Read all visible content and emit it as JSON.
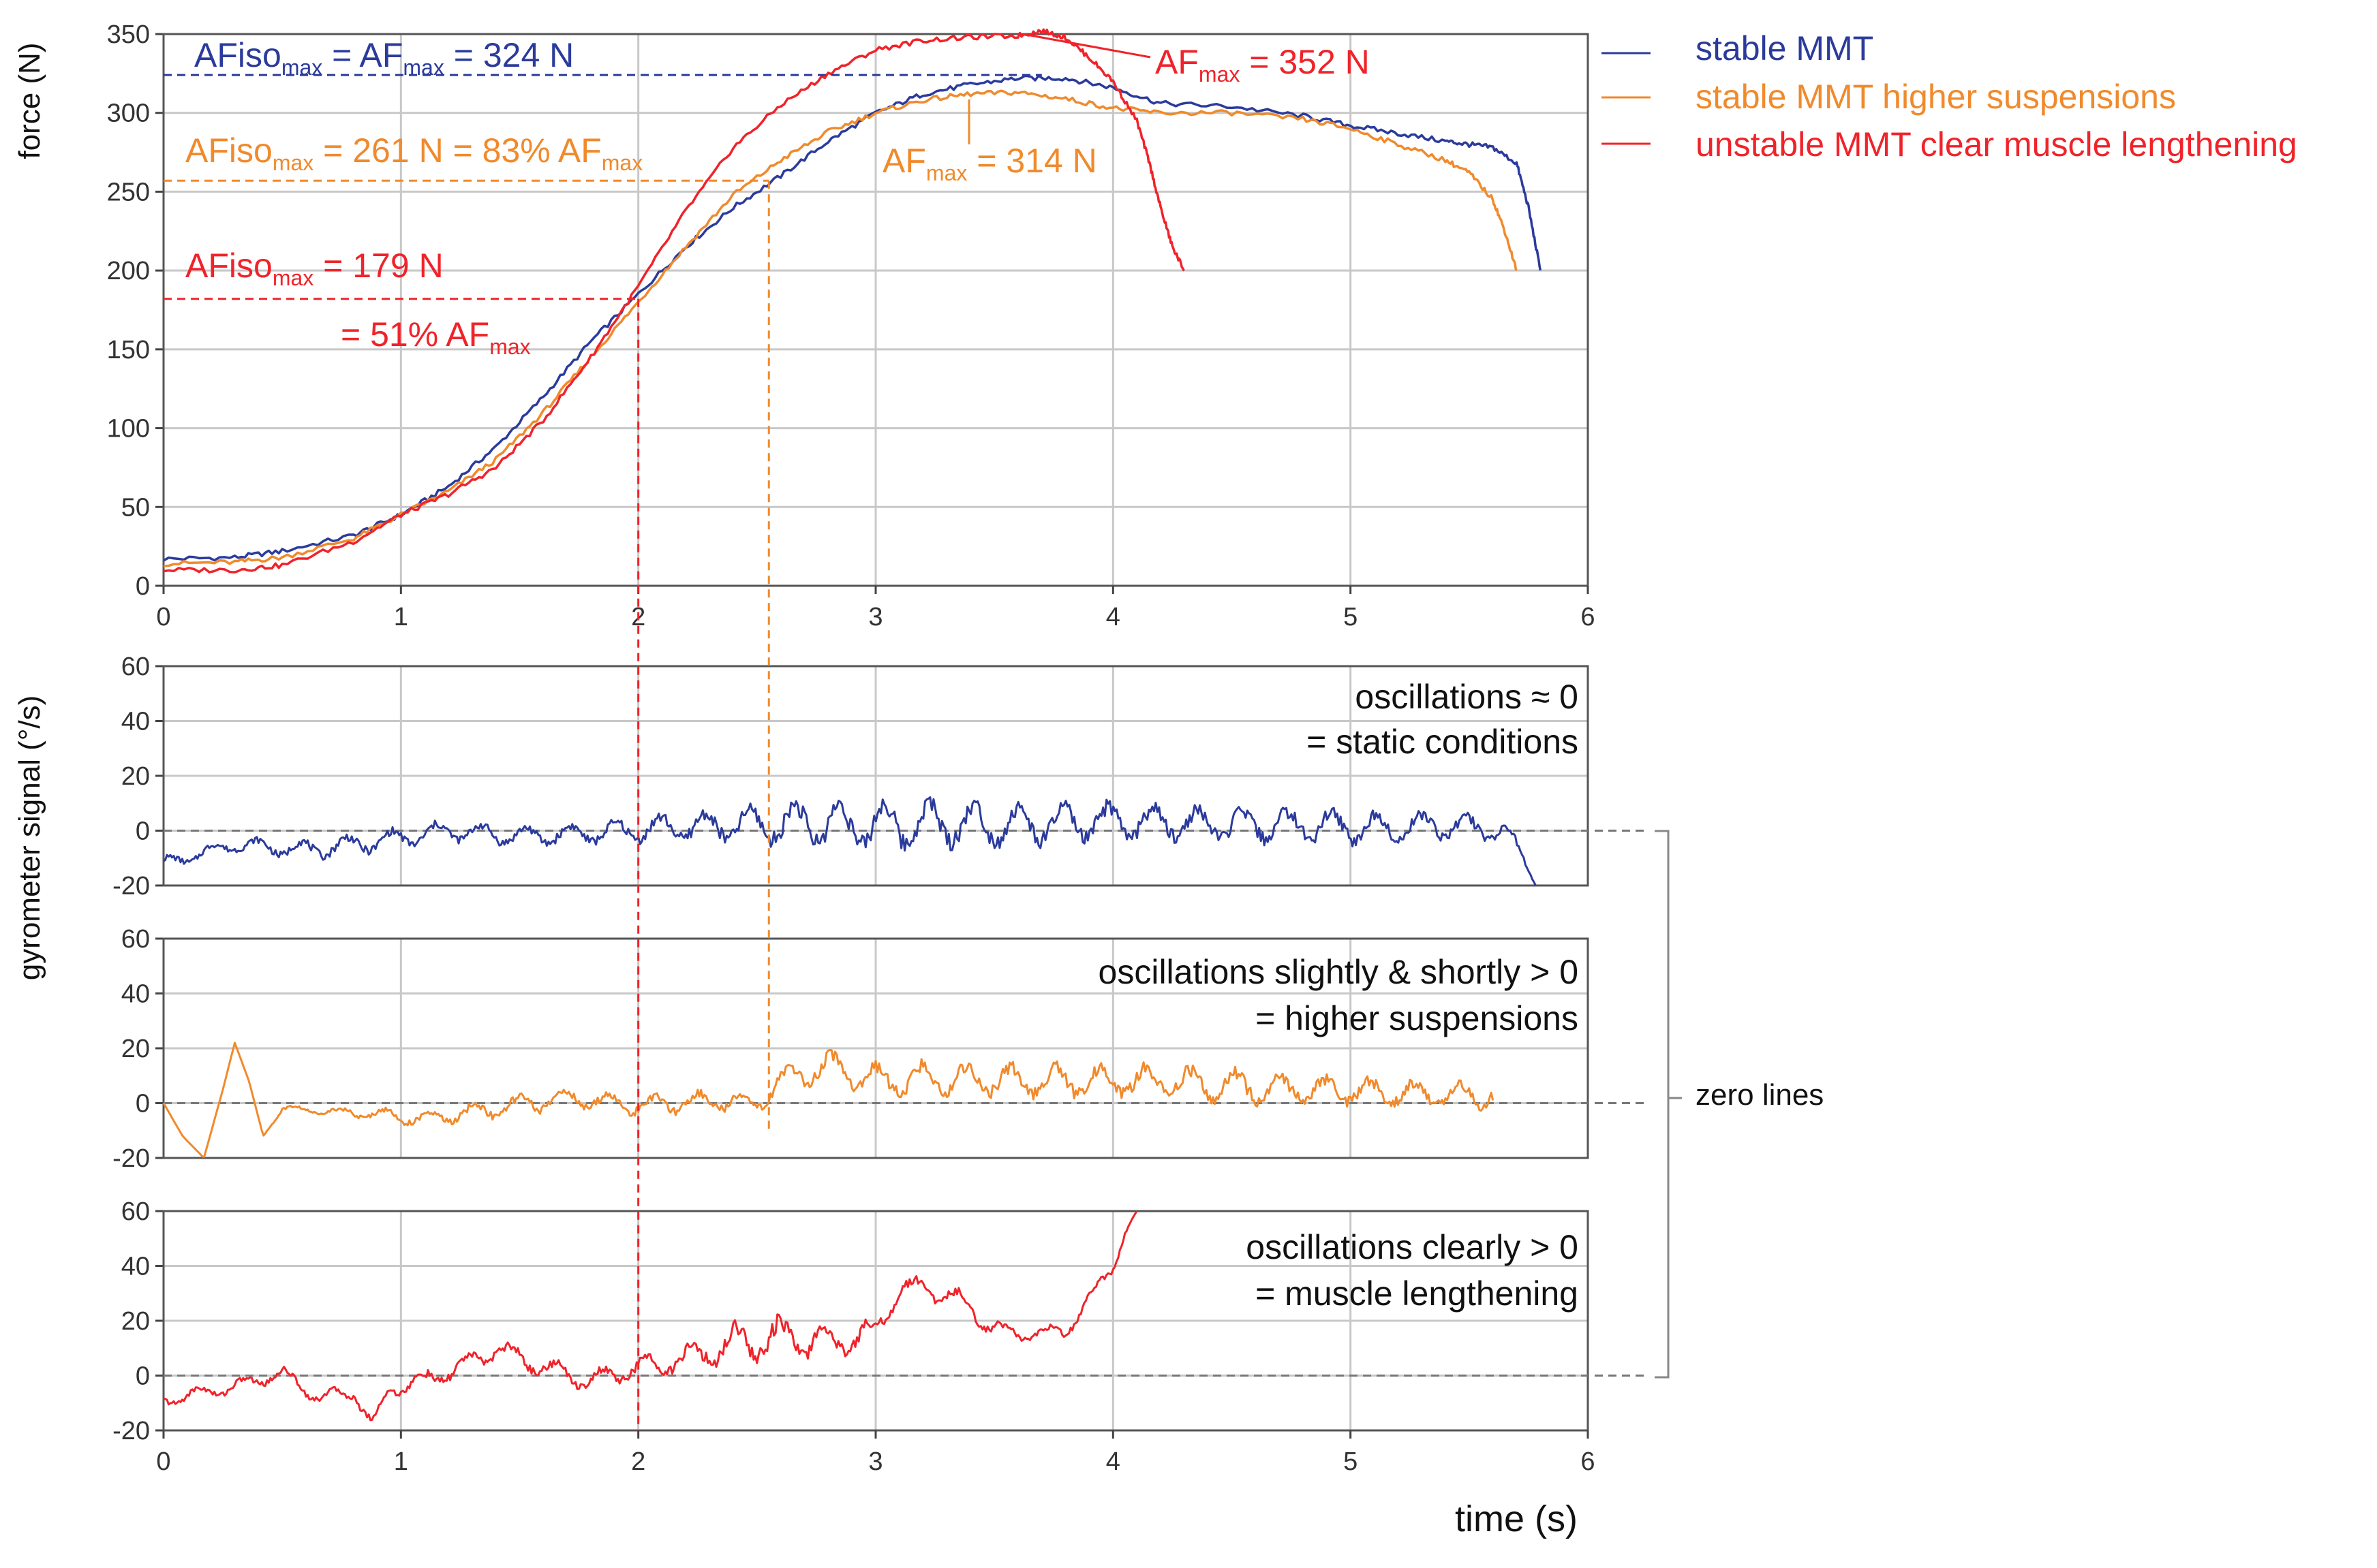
{
  "colors": {
    "stable": "#2b3b9c",
    "higher": "#f08a2c",
    "unstable": "#f0232a",
    "grid": "#c8c8c8",
    "zero": "#777777",
    "bracket": "#888888",
    "zero_text": "#8a8a8a"
  },
  "chart_data": [
    {
      "id": "force",
      "type": "line",
      "ylabel": "force (N)",
      "xlim": [
        0,
        6
      ],
      "ylim": [
        0,
        350
      ],
      "x_ticks": [
        "0",
        "1",
        "2",
        "3",
        "4",
        "5",
        "6"
      ],
      "y_ticks": [
        "0",
        "50",
        "100",
        "150",
        "200",
        "250",
        "300",
        "350"
      ],
      "grid": true,
      "legend_position": "outside-right-top",
      "series": [
        {
          "name": "stable MMT",
          "color_key": "stable",
          "x": [
            0,
            0.3,
            0.5,
            0.8,
            1.0,
            1.2,
            1.4,
            1.6,
            1.8,
            2.0,
            2.2,
            2.4,
            2.6,
            2.8,
            3.0,
            3.2,
            3.4,
            3.6,
            3.8,
            4.0,
            4.2,
            4.5,
            4.8,
            5.0,
            5.2,
            5.4,
            5.5,
            5.6,
            5.7,
            5.75,
            5.8
          ],
          "y": [
            17,
            18,
            22,
            32,
            45,
            63,
            88,
            120,
            155,
            185,
            215,
            240,
            260,
            282,
            300,
            312,
            318,
            322,
            322,
            316,
            306,
            304,
            298,
            292,
            287,
            282,
            280,
            278,
            268,
            240,
            200
          ]
        },
        {
          "name": "stable MMT higher suspensions",
          "color_key": "higher",
          "x": [
            0,
            0.3,
            0.5,
            0.8,
            1.0,
            1.2,
            1.4,
            1.6,
            1.8,
            2.0,
            2.2,
            2.4,
            2.6,
            2.8,
            3.0,
            3.2,
            3.4,
            3.6,
            3.8,
            4.0,
            4.2,
            4.5,
            4.8,
            5.0,
            5.2,
            5.4,
            5.5,
            5.6,
            5.65,
            5.7
          ],
          "y": [
            14,
            15,
            18,
            30,
            45,
            60,
            80,
            110,
            145,
            180,
            215,
            248,
            270,
            288,
            300,
            308,
            312,
            313,
            309,
            303,
            300,
            300,
            296,
            290,
            280,
            270,
            262,
            245,
            225,
            200
          ]
        },
        {
          "name": "unstable MMT clear muscle lengthening",
          "color_key": "unstable",
          "x": [
            0,
            0.3,
            0.5,
            0.8,
            1.0,
            1.2,
            1.4,
            1.6,
            1.8,
            2.0,
            2.2,
            2.4,
            2.6,
            2.8,
            3.0,
            3.2,
            3.4,
            3.6,
            3.7,
            3.8,
            3.9,
            4.0,
            4.1,
            4.15,
            4.2,
            4.25,
            4.3
          ],
          "y": [
            10,
            10,
            13,
            28,
            45,
            58,
            75,
            105,
            145,
            190,
            238,
            278,
            305,
            325,
            340,
            346,
            348,
            349,
            352,
            348,
            335,
            320,
            295,
            270,
            240,
            215,
            200
          ]
        }
      ],
      "reference_lines": [
        {
          "color_key": "stable",
          "x": null,
          "y": 324
        },
        {
          "color_key": "higher",
          "x": 2.55,
          "y": 257
        },
        {
          "color_key": "unstable",
          "x": 2.0,
          "y": 182
        }
      ],
      "annotations": {
        "stable_iso_pre": "AFiso",
        "stable_iso_sub": "max",
        "stable_iso_mid": " = AF",
        "stable_iso_sub2": "max",
        "stable_iso_post": " = 324 N",
        "higher_iso_pre": "AFiso",
        "higher_iso_sub": "max",
        "higher_iso_post": " = 261 N = 83% AF",
        "higher_iso_sub2": "max",
        "unstable_iso_pre": "AFiso",
        "unstable_iso_sub": "max",
        "unstable_iso_post": " = 179 N",
        "unstable_iso_line2_pre": "= 51% AF",
        "unstable_iso_line2_sub": "max",
        "unstable_max_pre": "AF",
        "unstable_max_sub": "max",
        "unstable_max_post": " = 352 N",
        "higher_max_pre": "AF",
        "higher_max_sub": "max",
        "higher_max_post": " = 314 N"
      }
    },
    {
      "id": "gyro-stable",
      "type": "line",
      "xlim": [
        0,
        6
      ],
      "ylim": [
        -20,
        60
      ],
      "y_ticks": [
        "-20",
        "0",
        "20",
        "40",
        "60"
      ],
      "grid": true,
      "color_key": "stable",
      "trend_x": [
        0,
        0.3,
        0.6,
        0.9,
        1.2,
        1.5,
        1.8,
        2.1,
        2.4,
        2.7,
        3.0,
        3.3,
        3.6,
        3.9,
        4.2,
        4.5,
        4.8,
        5.1,
        5.4,
        5.65,
        5.72,
        5.78
      ],
      "trend_y": [
        -12,
        -5,
        -7,
        -4,
        0,
        -2,
        -1,
        1,
        2,
        3,
        2,
        3,
        2,
        3,
        3,
        2,
        2,
        1,
        2,
        0,
        -8,
        -20
      ],
      "osc_amplitude": [
        2,
        2,
        3,
        3,
        3,
        3,
        3,
        4,
        5,
        7,
        8,
        7,
        6,
        6,
        5,
        5,
        5,
        5,
        4,
        3,
        2,
        0
      ],
      "note_line1": "oscillations ≈ 0",
      "note_line2": "= static conditions"
    },
    {
      "id": "gyro-higher",
      "type": "line",
      "xlim": [
        0,
        6
      ],
      "ylim": [
        -20,
        60
      ],
      "y_ticks": [
        "-20",
        "0",
        "20",
        "40",
        "60"
      ],
      "grid": true,
      "color_key": "higher",
      "trend_x": [
        0,
        0.08,
        0.17,
        0.25,
        0.3,
        0.36,
        0.42,
        0.5,
        0.7,
        0.9,
        1.1,
        1.4,
        1.7,
        2.0,
        2.3,
        2.5,
        2.6,
        2.8,
        3.0,
        3.3,
        3.6,
        3.9,
        4.2,
        4.5,
        4.8,
        5.1,
        5.4,
        5.6
      ],
      "trend_y": [
        0,
        -12,
        -20,
        5,
        22,
        8,
        -12,
        -2,
        -3,
        -4,
        -6,
        -2,
        2,
        -1,
        1,
        0,
        8,
        14,
        8,
        9,
        8,
        8,
        8,
        6,
        5,
        4,
        3,
        3
      ],
      "osc_amplitude": [
        0,
        0,
        0,
        0,
        0,
        0,
        0,
        1,
        1,
        2,
        2,
        3,
        3,
        3,
        3,
        3,
        4,
        4,
        5,
        5,
        5,
        5,
        5,
        5,
        4,
        4,
        4,
        4
      ],
      "note_line1": "oscillations slightly & shortly > 0",
      "note_line2": "= higher suspensions"
    },
    {
      "id": "gyro-unstable",
      "type": "line",
      "xlim": [
        0,
        6
      ],
      "ylim": [
        -20,
        60
      ],
      "x_ticks": [
        "0",
        "1",
        "2",
        "3",
        "4",
        "5",
        "6"
      ],
      "y_ticks": [
        "-20",
        "0",
        "20",
        "40",
        "60"
      ],
      "grid": true,
      "color_key": "unstable",
      "xlabel": "time  (s)",
      "trend_x": [
        0,
        0.3,
        0.5,
        0.65,
        0.8,
        0.88,
        0.95,
        1.1,
        1.3,
        1.4,
        1.6,
        1.8,
        2.0,
        2.2,
        2.4,
        2.6,
        2.8,
        3.0,
        3.1,
        3.2,
        3.35,
        3.5,
        3.6,
        3.8,
        3.9,
        4.0,
        4.05,
        4.1
      ],
      "trend_y": [
        -9,
        -4,
        1,
        -8,
        -6,
        -18,
        -5,
        -2,
        5,
        10,
        3,
        -2,
        3,
        6,
        12,
        14,
        12,
        16,
        32,
        32,
        28,
        17,
        15,
        16,
        28,
        40,
        52,
        60
      ],
      "osc_amplitude": [
        2,
        2,
        2,
        2,
        2,
        2,
        2,
        3,
        3,
        3,
        3,
        3,
        3,
        4,
        6,
        6,
        5,
        4,
        3,
        3,
        3,
        3,
        2,
        2,
        2,
        2,
        1,
        0
      ],
      "note_line1": "oscillations clearly > 0",
      "note_line2": "= muscle lengthening"
    }
  ],
  "shared": {
    "gyro_ylabel": "gyrometer signal (°/s)",
    "zero_lines_label": "zero lines"
  }
}
